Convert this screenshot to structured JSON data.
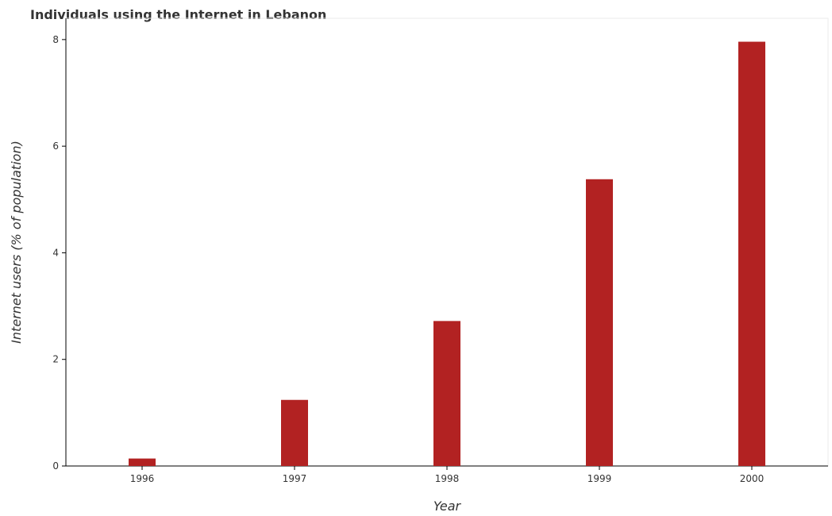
{
  "chart_data": {
    "type": "bar",
    "title": "Individuals using the Internet in Lebanon",
    "xlabel": "Year",
    "ylabel": "Internet users (% of population)",
    "categories": [
      "1996",
      "1997",
      "1998",
      "1999",
      "2000"
    ],
    "values": [
      0.14,
      1.24,
      2.72,
      5.38,
      7.96
    ],
    "ylim": [
      0,
      8.4
    ],
    "yticks": [
      0,
      2,
      4,
      6,
      8
    ],
    "bar_color": "#b22222",
    "grid": false,
    "legend": "none"
  }
}
